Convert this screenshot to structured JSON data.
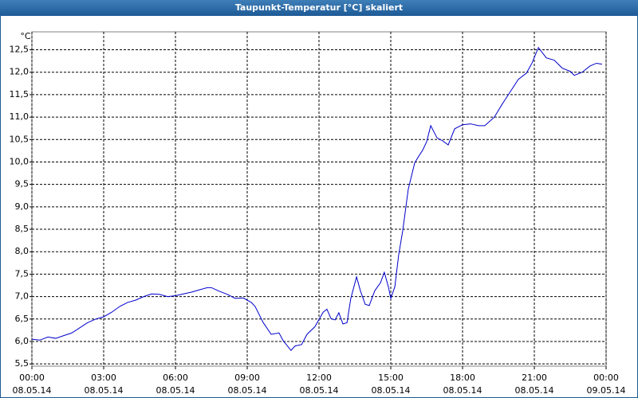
{
  "chart_data": {
    "type": "line",
    "title": "Taupunkt-Temperatur [°C] skaliert",
    "y_label": "°C",
    "xlim": [
      0,
      24
    ],
    "ylim": [
      5.45,
      12.9
    ],
    "grid": true,
    "xticks": [
      {
        "value": 0,
        "label": "00:00",
        "date": "08.05.14"
      },
      {
        "value": 3,
        "label": "03:00",
        "date": "08.05.14"
      },
      {
        "value": 6,
        "label": "06:00",
        "date": "08.05.14"
      },
      {
        "value": 9,
        "label": "09:00",
        "date": "08.05.14"
      },
      {
        "value": 12,
        "label": "12:00",
        "date": "08.05.14"
      },
      {
        "value": 15,
        "label": "15:00",
        "date": "08.05.14"
      },
      {
        "value": 18,
        "label": "18:00",
        "date": "08.05.14"
      },
      {
        "value": 21,
        "label": "21:00",
        "date": "08.05.14"
      },
      {
        "value": 24,
        "label": "00:00",
        "date": "09.05.14"
      }
    ],
    "yticks": [
      {
        "value": 5.5,
        "label": "5,5"
      },
      {
        "value": 6,
        "label": "6,0"
      },
      {
        "value": 6.5,
        "label": "6,5"
      },
      {
        "value": 7,
        "label": "7,0"
      },
      {
        "value": 7.5,
        "label": "7,5"
      },
      {
        "value": 8,
        "label": "8,0"
      },
      {
        "value": 8.5,
        "label": "8,5"
      },
      {
        "value": 9,
        "label": "9,0"
      },
      {
        "value": 9.5,
        "label": "9,5"
      },
      {
        "value": 10,
        "label": "10,0"
      },
      {
        "value": 10.5,
        "label": "10,5"
      },
      {
        "value": 11,
        "label": "11,0"
      },
      {
        "value": 11.5,
        "label": "11,5"
      },
      {
        "value": 12,
        "label": "12,0"
      },
      {
        "value": 12.5,
        "label": "12,5"
      }
    ],
    "x": [
      0,
      0.33,
      0.67,
      1.0,
      1.33,
      1.67,
      2.33,
      2.67,
      3.0,
      3.33,
      3.67,
      4.0,
      4.33,
      4.67,
      5.0,
      5.33,
      5.67,
      6.0,
      6.33,
      6.67,
      7.0,
      7.33,
      7.5,
      7.83,
      8.17,
      8.5,
      8.83,
      9.17,
      9.33,
      9.67,
      10.0,
      10.33,
      10.5,
      10.83,
      11.0,
      11.27,
      11.5,
      11.83,
      12.17,
      12.33,
      12.5,
      12.67,
      12.83,
      13.0,
      13.17,
      13.33,
      13.57,
      13.73,
      13.93,
      14.1,
      14.33,
      14.57,
      14.73,
      14.9,
      15.0,
      15.17,
      15.33,
      15.5,
      15.73,
      16.0,
      16.17,
      16.33,
      16.5,
      16.67,
      16.93,
      17.17,
      17.4,
      17.67,
      18.0,
      18.33,
      18.67,
      18.93,
      19.33,
      19.67,
      20.0,
      20.33,
      20.67,
      20.9,
      21.17,
      21.5,
      21.83,
      22.17,
      22.5,
      22.67,
      23.0,
      23.33,
      23.6,
      23.83
    ],
    "series": [
      {
        "color": "#0000cc",
        "values": [
          6.05,
          6.03,
          6.1,
          6.07,
          6.13,
          6.19,
          6.42,
          6.5,
          6.55,
          6.65,
          6.78,
          6.87,
          6.92,
          7.0,
          7.06,
          7.05,
          7.0,
          7.02,
          7.06,
          7.1,
          7.15,
          7.2,
          7.2,
          7.12,
          7.05,
          6.96,
          6.97,
          6.87,
          6.78,
          6.42,
          6.16,
          6.19,
          6.02,
          5.8,
          5.9,
          5.93,
          6.16,
          6.33,
          6.65,
          6.72,
          6.51,
          6.48,
          6.64,
          6.39,
          6.42,
          6.96,
          7.44,
          7.13,
          6.83,
          6.8,
          7.13,
          7.31,
          7.54,
          7.22,
          6.96,
          7.22,
          7.93,
          8.47,
          9.39,
          9.98,
          10.13,
          10.26,
          10.45,
          10.81,
          10.54,
          10.47,
          10.38,
          10.74,
          10.83,
          10.85,
          10.81,
          10.81,
          11.0,
          11.3,
          11.57,
          11.84,
          11.98,
          12.2,
          12.55,
          12.32,
          12.27,
          12.09,
          12.02,
          11.93,
          12.0,
          12.14,
          12.2,
          12.18
        ]
      }
    ]
  }
}
